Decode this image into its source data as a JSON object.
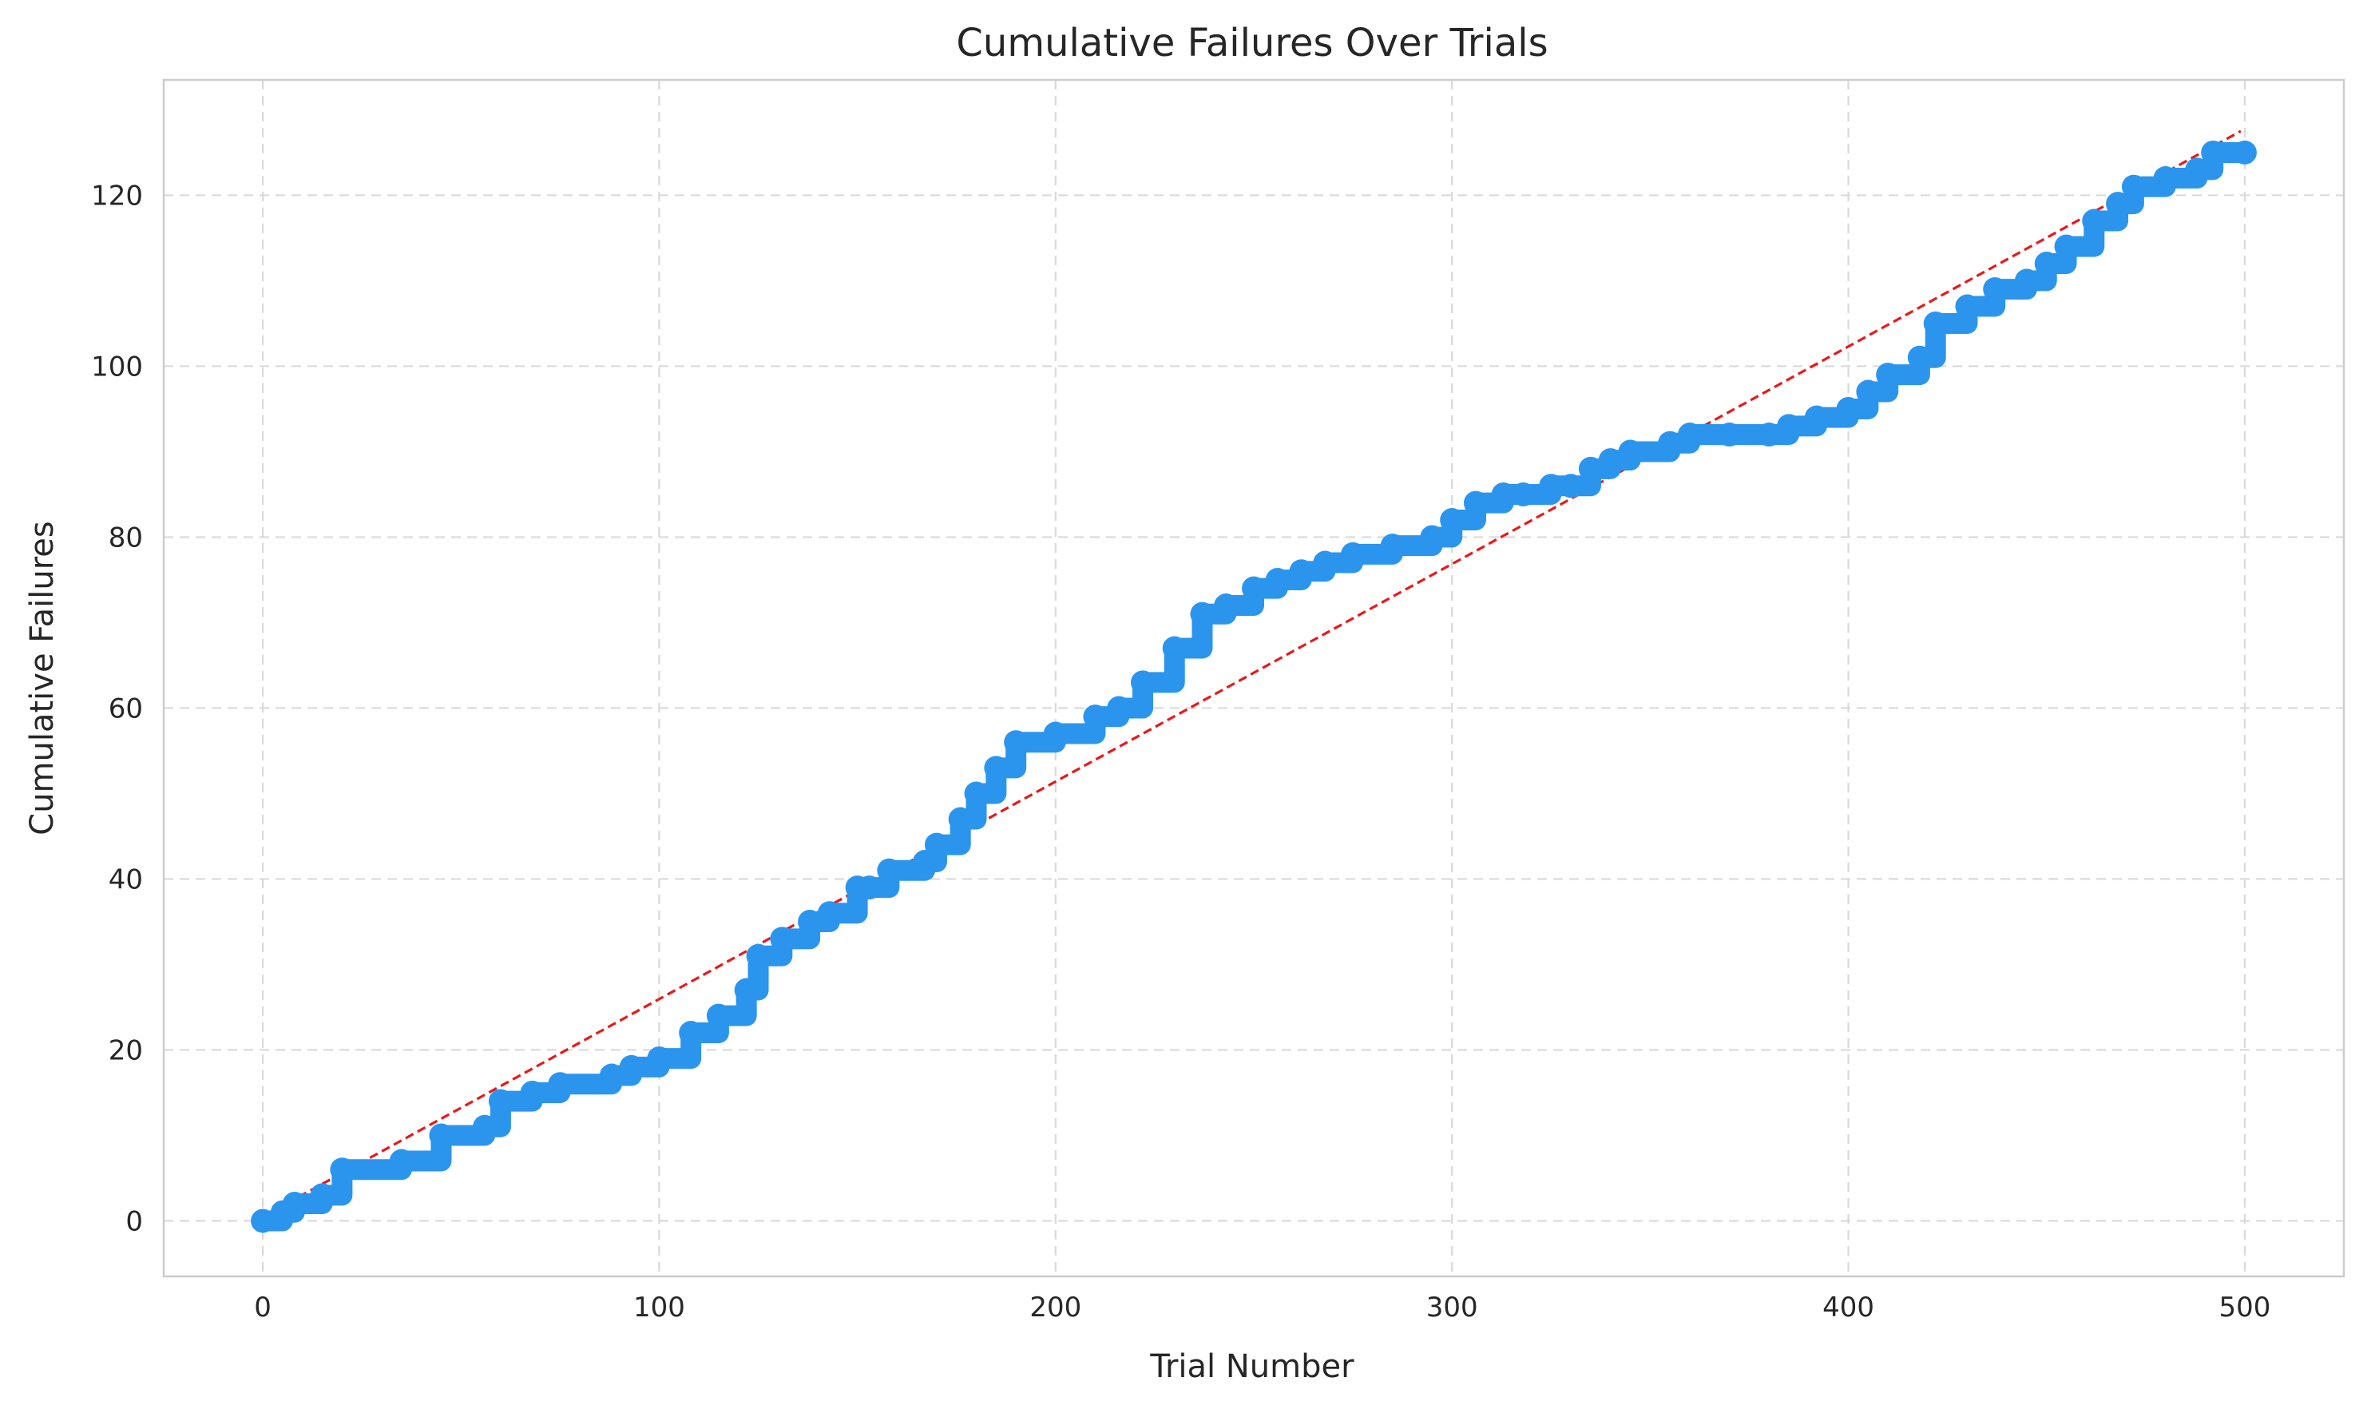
{
  "chart_data": {
    "type": "line",
    "title": "Cumulative Failures Over Trials",
    "xlabel": "Trial Number",
    "ylabel": "Cumulative Failures",
    "xlim": [
      -25,
      525
    ],
    "ylim": [
      -6.5,
      133.5
    ],
    "xticks": [
      0,
      100,
      200,
      300,
      400,
      500
    ],
    "yticks": [
      0,
      20,
      40,
      60,
      80,
      100,
      120
    ],
    "grid": true,
    "legend": "none",
    "series": [
      {
        "role": "cumulative failures",
        "color": "#2b95ee",
        "marker": "circle",
        "x": [
          0,
          5,
          8,
          15,
          20,
          35,
          45,
          56,
          60,
          68,
          75,
          88,
          93,
          100,
          108,
          115,
          122,
          125,
          131,
          138,
          143,
          150,
          153,
          158,
          167,
          170,
          176,
          180,
          185,
          190,
          200,
          210,
          216,
          222,
          230,
          237,
          243,
          250,
          256,
          262,
          268,
          275,
          285,
          295,
          300,
          306,
          313,
          318,
          325,
          330,
          335,
          340,
          345,
          355,
          360,
          370,
          380,
          385,
          392,
          400,
          405,
          410,
          418,
          422,
          430,
          437,
          445,
          450,
          455,
          462,
          468,
          472,
          480,
          488,
          492,
          500
        ],
        "y": [
          0,
          1,
          2,
          3,
          6,
          7,
          10,
          11,
          14,
          15,
          16,
          17,
          18,
          19,
          22,
          24,
          27,
          31,
          33,
          35,
          36,
          39,
          39,
          41,
          42,
          44,
          47,
          50,
          53,
          56,
          57,
          59,
          60,
          63,
          67,
          71,
          72,
          74,
          75,
          76,
          77,
          78,
          79,
          80,
          82,
          84,
          85,
          85,
          86,
          86,
          88,
          89,
          90,
          91,
          92,
          92,
          92,
          93,
          94,
          95,
          97,
          99,
          101,
          105,
          107,
          109,
          110,
          112,
          114,
          117,
          119,
          121,
          122,
          123,
          125,
          125
        ]
      },
      {
        "role": "linear fit",
        "color": "#e8191b",
        "style": "dashed",
        "x": [
          0,
          499
        ],
        "y": [
          0.5,
          127.5
        ]
      }
    ]
  }
}
